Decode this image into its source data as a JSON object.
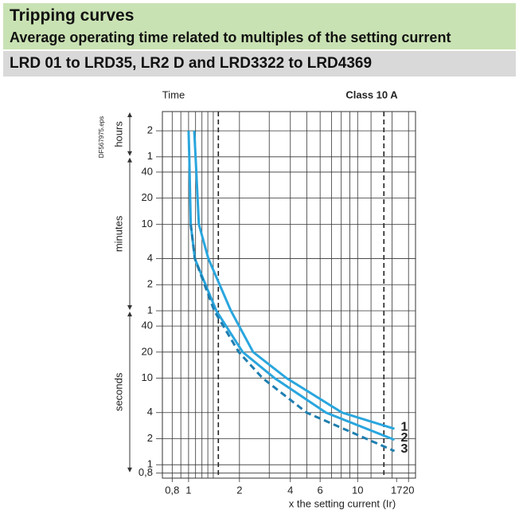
{
  "header": {
    "title": "Tripping curves",
    "subtitle": "Average operating time related to multiples of the setting current",
    "range": "LRD 01 to LRD35, LR2 D and LRD3322 to LRD4369"
  },
  "chart_data": {
    "type": "line",
    "title": "Class 10 A",
    "y_label": "Time",
    "x_label": "x the setting current (Ir)",
    "code": "DF567975.eps",
    "x_log": true,
    "y_log": true,
    "xlim": [
      0.7,
      22
    ],
    "ylim": [
      0.7,
      12000
    ],
    "xticks": [
      {
        "value": 0.8,
        "label": "0,8"
      },
      1,
      2,
      4,
      6,
      10,
      17,
      20
    ],
    "yticks": [
      {
        "value": 0.8,
        "label": "0,8"
      },
      1,
      2,
      4,
      10,
      20,
      40,
      {
        "value": 60,
        "label": "1"
      },
      {
        "value": 120,
        "label": "2"
      },
      {
        "value": 240,
        "label": "4"
      },
      {
        "value": 600,
        "label": "10"
      },
      {
        "value": 1200,
        "label": "20"
      },
      {
        "value": 2400,
        "label": "40"
      },
      {
        "value": 3600,
        "label": "1"
      },
      {
        "value": 7200,
        "label": "2"
      }
    ],
    "xgrid": [
      0.8,
      0.9,
      1,
      1.1,
      1.2,
      1.3,
      1.4,
      2,
      3,
      4,
      5,
      6,
      7,
      8,
      9,
      10,
      12,
      16,
      20
    ],
    "xdashed": [
      1.5,
      14.3
    ],
    "y_sections": [
      {
        "label": "seconds",
        "range": [
          0.8,
          60
        ]
      },
      {
        "label": "minutes",
        "range": [
          60,
          3600
        ]
      },
      {
        "label": "hours",
        "range": [
          3600,
          12000
        ]
      }
    ],
    "series": [
      {
        "name": "1",
        "color": "#29a6de",
        "dashed": false,
        "x": [
          1.08,
          1.1,
          1.15,
          1.31,
          1.78,
          2.41,
          3.8,
          8.1,
          16.5
        ],
        "values": [
          7200,
          3600,
          600,
          240,
          60,
          20,
          10,
          4,
          2.6
        ]
      },
      {
        "name": "2",
        "color": "#29a6de",
        "dashed": false,
        "x": [
          1.0,
          1.01,
          1.03,
          1.09,
          1.46,
          2.09,
          3.23,
          6.5,
          16.5
        ],
        "values": [
          7200,
          3600,
          600,
          240,
          60,
          20,
          10,
          4,
          1.94
        ]
      },
      {
        "name": "3",
        "color": "#1f7fb0",
        "dashed": true,
        "x": [
          1.03,
          1.09,
          1.42,
          1.98,
          2.74,
          5.0,
          16.5
        ],
        "values": [
          600,
          240,
          60,
          20,
          10,
          4,
          1.44
        ]
      }
    ]
  }
}
